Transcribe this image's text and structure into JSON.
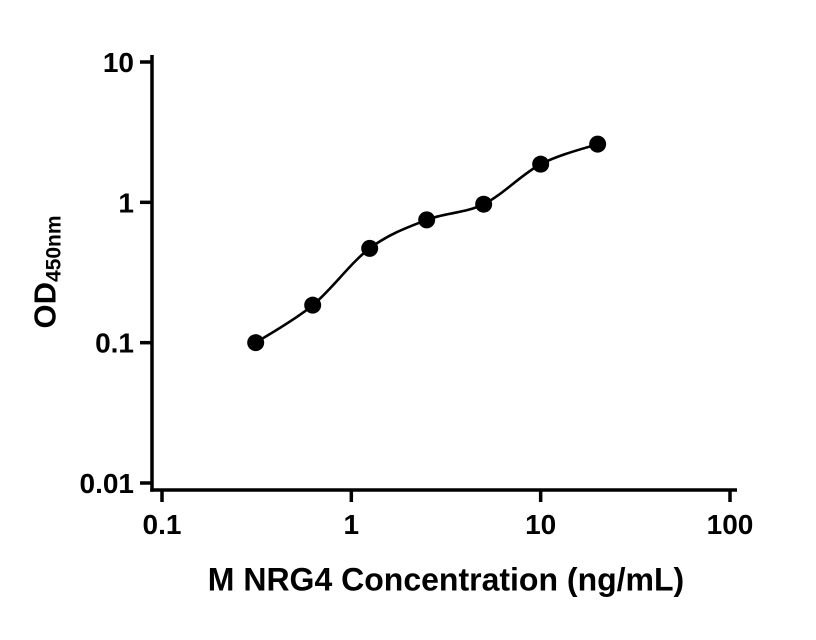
{
  "figure": {
    "background": "#ffffff"
  },
  "chart_data": {
    "type": "scatter",
    "title": "",
    "xlabel": "M NRG4 Concentration (ng/mL)",
    "ylabel": "OD450nm",
    "ylabel_main": "OD",
    "ylabel_sub": "450nm",
    "x_scale": "log10",
    "y_scale": "log10",
    "xlim": [
      0.1,
      100
    ],
    "ylim": [
      0.01,
      10
    ],
    "x_ticks": [
      0.1,
      1,
      10,
      100
    ],
    "x_tick_labels": [
      "0.1",
      "1",
      "10",
      "100"
    ],
    "y_ticks": [
      0.01,
      0.1,
      1,
      10
    ],
    "y_tick_labels": [
      "0.01",
      "0.1",
      "1",
      "10"
    ],
    "grid": false,
    "legend": false,
    "axis_color": "#000000",
    "series": [
      {
        "marker": "filled-circle",
        "marker_color": "#000000",
        "line": "smooth-fit",
        "line_color": "#000000",
        "points": [
          {
            "x": 0.3125,
            "y": 0.1
          },
          {
            "x": 0.625,
            "y": 0.185
          },
          {
            "x": 1.25,
            "y": 0.47
          },
          {
            "x": 2.5,
            "y": 0.75
          },
          {
            "x": 5,
            "y": 0.97
          },
          {
            "x": 10,
            "y": 1.87
          },
          {
            "x": 20,
            "y": 2.6
          }
        ]
      }
    ]
  }
}
